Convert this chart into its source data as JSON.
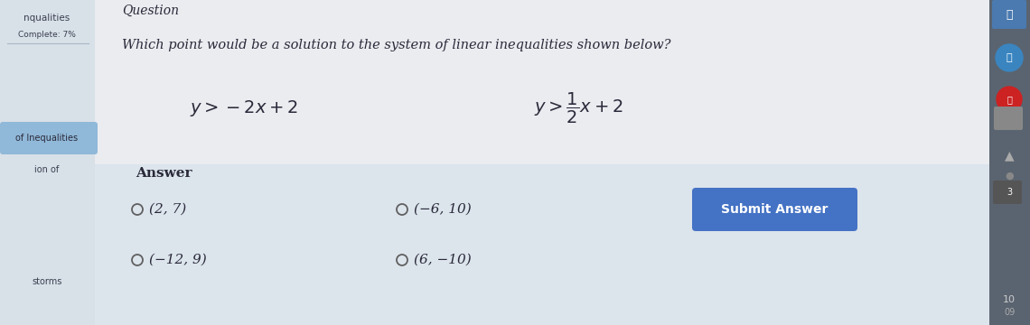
{
  "title": "Question",
  "question_text": "Which point would be a solution to the system of linear inequalities shown below?",
  "answer_label": "Answer",
  "choices": [
    "(2, 7)",
    "(−6, 10)",
    "(−12, 9)",
    "(6, −10)"
  ],
  "submit_button_text": "Submit Answer",
  "sidebar_text1": "nqualities",
  "sidebar_text2": "Complete: 7%",
  "sidebar_text3": "of Inequalities",
  "sidebar_text4": "ion of",
  "sidebar_text5": "storms",
  "bg_main": "#e8ecf0",
  "bg_content": "#f0f2f5",
  "bg_answer": "#dce4ec",
  "bg_left": "#d8e0e8",
  "bg_sidebar_blue": "#90b8d8",
  "bg_right": "#5a6470",
  "bg_submit": "#4472c4",
  "text_dark": "#2a2a3a",
  "text_sidebar": "#3a4050",
  "figsize": [
    11.4,
    3.6
  ],
  "dpi": 100
}
